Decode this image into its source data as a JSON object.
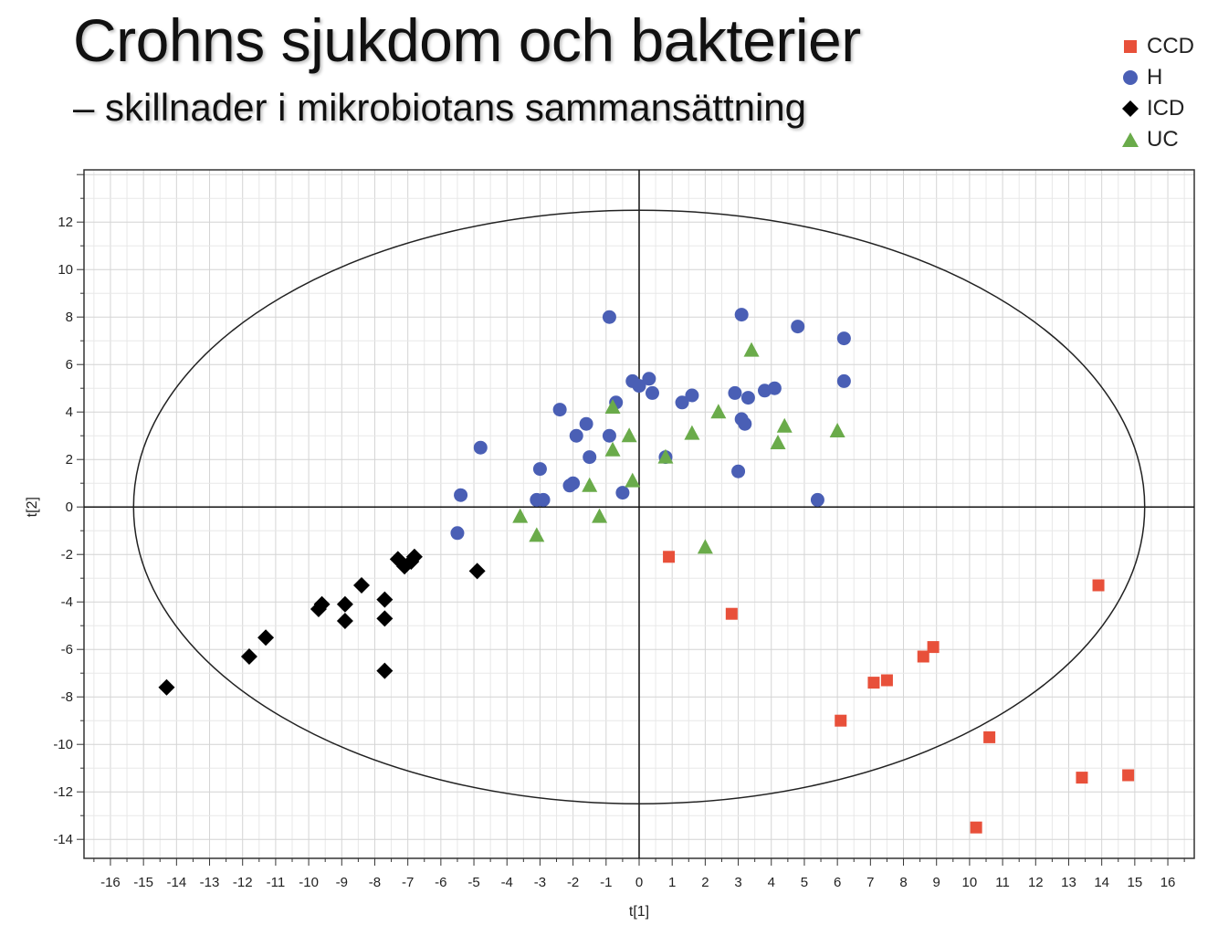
{
  "header": {
    "title": "Crohns sjukdom och bakterier",
    "subtitle": "– skillnader i mikrobiotans sammansättning"
  },
  "colors": {
    "ccd": "#e8503a",
    "h": "#4a5fb5",
    "icd": "#000000",
    "uc": "#6aab4a"
  },
  "chart_data": {
    "type": "scatter",
    "title": "Crohns sjukdom och bakterier",
    "xlabel": "t[1]",
    "ylabel": "t[2]",
    "xlim": [
      -16.8,
      16.8
    ],
    "ylim": [
      -14.8,
      14.2
    ],
    "x_ticks": [
      -16,
      -15,
      -14,
      -13,
      -12,
      -11,
      -10,
      -9,
      -8,
      -7,
      -6,
      -5,
      -4,
      -3,
      -2,
      -1,
      0,
      1,
      2,
      3,
      4,
      5,
      6,
      7,
      8,
      9,
      10,
      11,
      12,
      13,
      14,
      15,
      16
    ],
    "y_ticks": [
      -14,
      -12,
      -10,
      -8,
      -6,
      -4,
      -2,
      0,
      2,
      4,
      6,
      8,
      10,
      12
    ],
    "grid": true,
    "ellipse": {
      "rx": 15.3,
      "ry": 12.5
    },
    "legend_position": "top-right",
    "series": [
      {
        "name": "CCD",
        "marker": "square",
        "color": "#e8503a",
        "points": [
          [
            0.9,
            -2.1
          ],
          [
            2.8,
            -4.5
          ],
          [
            6.1,
            -9.0
          ],
          [
            7.1,
            -7.4
          ],
          [
            7.5,
            -7.3
          ],
          [
            8.6,
            -6.3
          ],
          [
            8.9,
            -5.9
          ],
          [
            10.6,
            -9.7
          ],
          [
            10.2,
            -13.5
          ],
          [
            13.4,
            -11.4
          ],
          [
            14.8,
            -11.3
          ],
          [
            13.9,
            -3.3
          ]
        ]
      },
      {
        "name": "H",
        "marker": "circle",
        "color": "#4a5fb5",
        "points": [
          [
            -0.9,
            8.0
          ],
          [
            3.1,
            8.1
          ],
          [
            4.8,
            7.6
          ],
          [
            6.2,
            7.1
          ],
          [
            6.2,
            5.3
          ],
          [
            -0.2,
            5.3
          ],
          [
            0.0,
            5.1
          ],
          [
            0.3,
            5.4
          ],
          [
            0.4,
            4.8
          ],
          [
            1.3,
            4.4
          ],
          [
            1.6,
            4.7
          ],
          [
            2.9,
            4.8
          ],
          [
            3.3,
            4.6
          ],
          [
            3.8,
            4.9
          ],
          [
            4.1,
            5.0
          ],
          [
            -0.7,
            4.4
          ],
          [
            -2.4,
            4.1
          ],
          [
            -1.6,
            3.5
          ],
          [
            -1.9,
            3.0
          ],
          [
            -0.9,
            3.0
          ],
          [
            3.1,
            3.7
          ],
          [
            3.2,
            3.5
          ],
          [
            -4.8,
            2.5
          ],
          [
            -1.5,
            2.1
          ],
          [
            0.8,
            2.1
          ],
          [
            -3.0,
            1.6
          ],
          [
            3.0,
            1.5
          ],
          [
            -2.0,
            1.0
          ],
          [
            -2.1,
            0.9
          ],
          [
            -0.5,
            0.6
          ],
          [
            -5.4,
            0.5
          ],
          [
            -3.1,
            0.3
          ],
          [
            -2.9,
            0.3
          ],
          [
            5.4,
            0.3
          ],
          [
            -5.5,
            -1.1
          ]
        ]
      },
      {
        "name": "ICD",
        "marker": "diamond",
        "color": "#000000",
        "points": [
          [
            -14.3,
            -7.6
          ],
          [
            -11.8,
            -6.3
          ],
          [
            -11.3,
            -5.5
          ],
          [
            -9.7,
            -4.3
          ],
          [
            -9.6,
            -4.1
          ],
          [
            -8.9,
            -4.1
          ],
          [
            -8.9,
            -4.8
          ],
          [
            -8.4,
            -3.3
          ],
          [
            -7.7,
            -3.9
          ],
          [
            -7.7,
            -4.7
          ],
          [
            -7.7,
            -6.9
          ],
          [
            -7.3,
            -2.2
          ],
          [
            -7.1,
            -2.5
          ],
          [
            -6.9,
            -2.3
          ],
          [
            -6.8,
            -2.1
          ],
          [
            -4.9,
            -2.7
          ]
        ]
      },
      {
        "name": "UC",
        "marker": "triangle",
        "color": "#6aab4a",
        "points": [
          [
            3.4,
            6.6
          ],
          [
            -0.8,
            4.2
          ],
          [
            2.4,
            4.0
          ],
          [
            4.4,
            3.4
          ],
          [
            6.0,
            3.2
          ],
          [
            1.6,
            3.1
          ],
          [
            -0.3,
            3.0
          ],
          [
            4.2,
            2.7
          ],
          [
            -0.8,
            2.4
          ],
          [
            0.8,
            2.1
          ],
          [
            -0.2,
            1.1
          ],
          [
            -1.5,
            0.9
          ],
          [
            -3.6,
            -0.4
          ],
          [
            -1.2,
            -0.4
          ],
          [
            -3.1,
            -1.2
          ],
          [
            2.0,
            -1.7
          ]
        ]
      }
    ]
  }
}
